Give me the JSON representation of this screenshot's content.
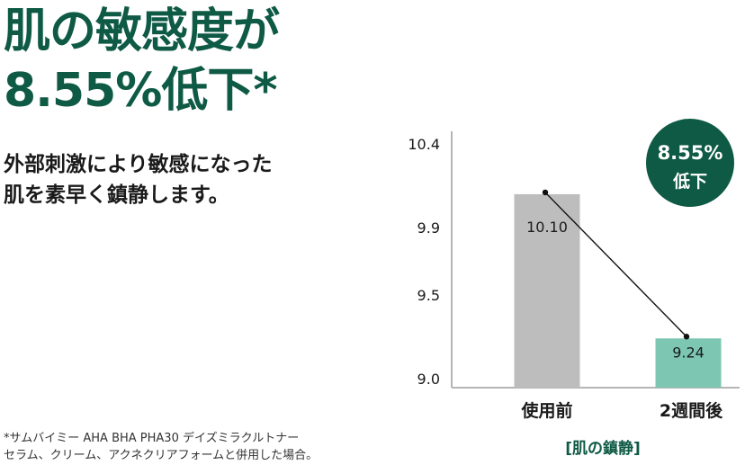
{
  "headline": {
    "line1": "肌の敏感度が",
    "line2": "8.55%低下*"
  },
  "subcopy": {
    "line1": "外部刺激により敏感になった",
    "line2": "肌を素早く鎮静します。"
  },
  "badge": {
    "value": "8.55%",
    "text": "低下"
  },
  "footnote": {
    "line1": "*サムバイミー AHA BHA PHA30 デイズミラクルトナー",
    "line2": "セラム、クリーム、アクネクリアフォームと併用した場合。"
  },
  "colors": {
    "brand_green": "#0e5a44",
    "bar_before": "#bdbdbd",
    "bar_after": "#7cc6b2"
  },
  "chart_data": {
    "type": "bar",
    "title": "",
    "xlabel": "[肌の鎮静]",
    "ylabel": "",
    "categories": [
      "使用前",
      "2週間後"
    ],
    "values": [
      10.1,
      9.24
    ],
    "data_labels": [
      "10.10",
      "9.24"
    ],
    "ylim": [
      9.0,
      10.4
    ],
    "yticks": [
      9.0,
      9.5,
      9.9,
      10.4
    ],
    "ytick_labels": [
      "9.0",
      "9.5",
      "9.9",
      "10.4"
    ],
    "grid": false,
    "connector_line": true
  }
}
